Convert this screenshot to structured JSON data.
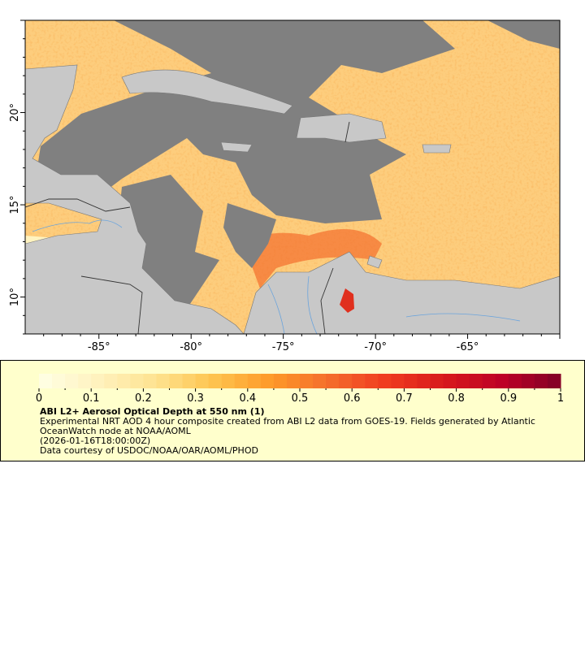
{
  "map": {
    "lon_range": [
      -89,
      -60
    ],
    "lat_range": [
      8,
      25
    ],
    "x_ticks": [
      "-85°",
      "-80°",
      "-75°",
      "-70°",
      "-65°"
    ],
    "x_tick_values": [
      -85,
      -80,
      -75,
      -70,
      -65
    ],
    "y_ticks": [
      "20°",
      "15°",
      "10°"
    ],
    "y_tick_values": [
      20,
      15,
      10
    ],
    "colors": {
      "land": "#c8c8c8",
      "no_data": "#808080",
      "rivers": "#6ba4dc",
      "borders": "#555555"
    }
  },
  "legend": {
    "colorbar_ticks": [
      "0",
      "0.1",
      "0.2",
      "0.3",
      "0.4",
      "0.5",
      "0.6",
      "0.7",
      "0.8",
      "0.9",
      "1"
    ],
    "range": [
      0,
      1
    ],
    "colorscale": [
      "#ffffe5",
      "#fff2bf",
      "#fee391",
      "#fec44f",
      "#fe9929",
      "#f46d2c",
      "#f03b20",
      "#d7191c",
      "#bd0026",
      "#800026"
    ],
    "title": "ABI L2+ Aerosol Optical Depth at 550 nm (1)",
    "description_line1": "Experimental NRT AOD 4 hour composite created from ABI L2 data from GOES-19. Fields generated by Atlantic",
    "description_line2": "OceanWatch node at NOAA/AOML",
    "time": "(2026-01-16T18:00:00Z)",
    "credit": "Data courtesy of USDOC/NOAA/OAR/AOML/PHOD"
  }
}
